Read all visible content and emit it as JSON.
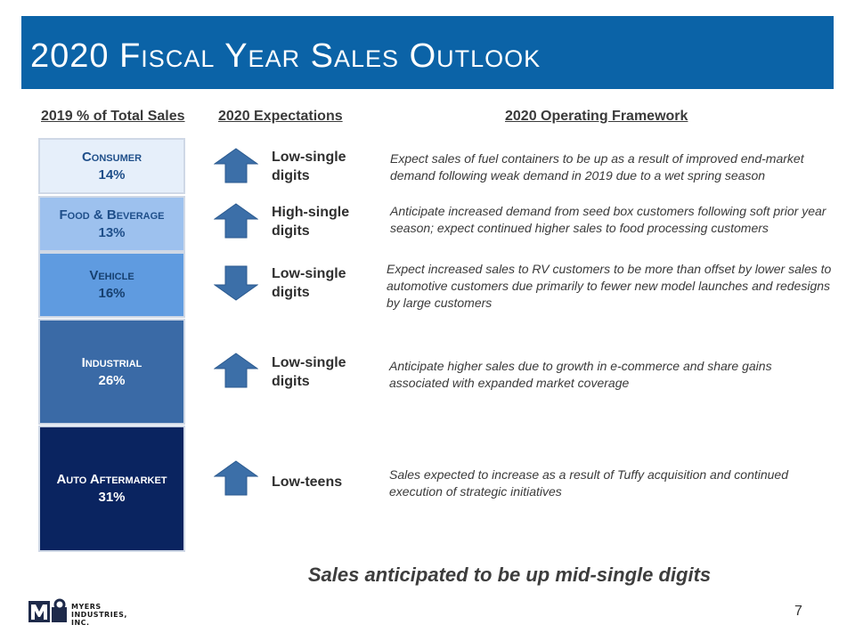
{
  "header": {
    "title": "2020 Fiscal Year Sales Outlook"
  },
  "columns": {
    "sales_mix": "2019 % of Total Sales",
    "expectations": "2020 Expectations",
    "framework": "2020 Operating Framework"
  },
  "segments": [
    {
      "name": "Consumer",
      "percent": "14%",
      "direction": "up",
      "expectation": "Low-single digits",
      "framework": "Expect sales of fuel containers to be up as a result of improved end-market demand following weak demand in 2019 due to a wet spring season"
    },
    {
      "name": "Food & Beverage",
      "percent": "13%",
      "direction": "up",
      "expectation": "High-single digits",
      "framework": "Anticipate increased demand from seed box customers following soft prior year season; expect continued higher sales to food processing customers"
    },
    {
      "name": "Vehicle",
      "percent": "16%",
      "direction": "down",
      "expectation": "Low-single digits",
      "framework": "Expect increased sales to RV customers to be more than offset by lower sales to automotive customers due primarily to fewer new model launches and redesigns by large customers"
    },
    {
      "name": "Industrial",
      "percent": "26%",
      "direction": "up",
      "expectation": "Low-single digits",
      "framework": "Anticipate higher sales due to growth in e-commerce and share gains associated with expanded market coverage"
    },
    {
      "name": "Auto Aftermarket",
      "percent": "31%",
      "direction": "up",
      "expectation": "Low-teens",
      "framework": "Sales expected to increase as a result of Tuffy acquisition and continued execution of strategic initiatives"
    }
  ],
  "summary": "Sales anticipated to be up mid-single digits",
  "page_number": "7",
  "logo": {
    "text": "MYERS INDUSTRIES, INC."
  },
  "colors": {
    "title_bar": "#0b63a7",
    "consumer": "#e6effa",
    "food_beverage": "#9dc1ee",
    "vehicle": "#5f9be0",
    "industrial": "#3a6aa6",
    "auto_aftermarket": "#0a2460",
    "arrow": "#3c6fa8"
  }
}
